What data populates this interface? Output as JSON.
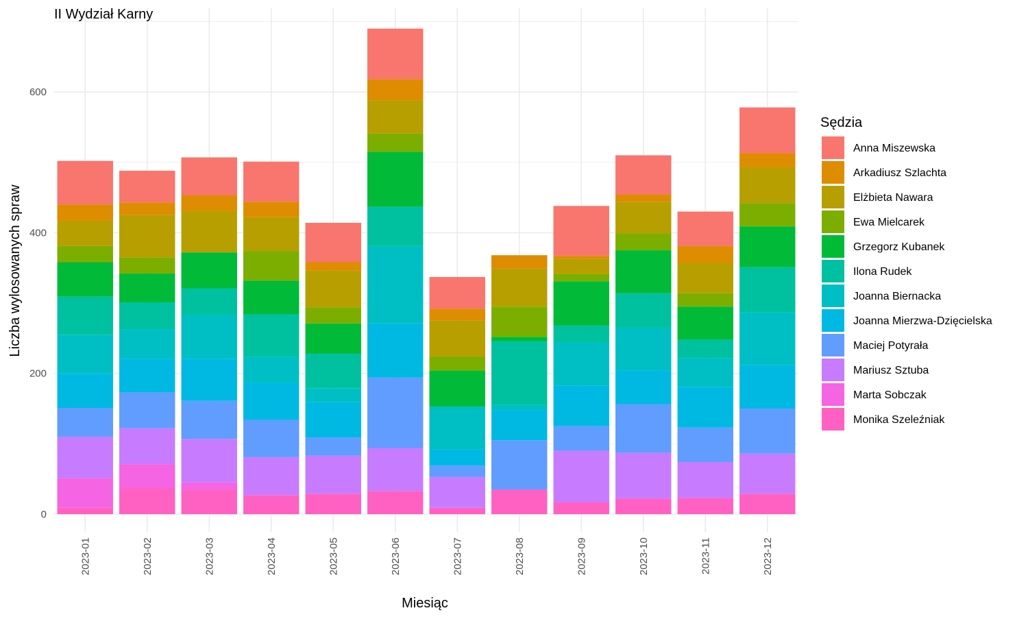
{
  "chart_data": {
    "type": "bar",
    "stacked": true,
    "title": "II Wydział Karny",
    "xlabel": "Miesiąc",
    "ylabel": "Liczba wylosowanych spraw",
    "ylim": [
      0,
      700
    ],
    "yticks": [
      0,
      200,
      400,
      600
    ],
    "grid": true,
    "legend_title": "Sędzia",
    "legend_position": "right",
    "categories": [
      "2023-01",
      "2023-02",
      "2023-03",
      "2023-04",
      "2023-05",
      "2023-06",
      "2023-07",
      "2023-08",
      "2023-09",
      "2023-10",
      "2023-11",
      "2023-12"
    ],
    "series": [
      {
        "name": "Monika Szeleźniak",
        "color": "#FF61C3",
        "values": [
          9,
          37,
          35,
          27,
          29,
          33,
          9,
          35,
          17,
          22,
          23,
          29
        ]
      },
      {
        "name": "Marta Sobczak",
        "color": "#F564E3",
        "values": [
          42,
          34,
          10,
          0,
          0,
          0,
          0,
          0,
          0,
          0,
          0,
          0
        ]
      },
      {
        "name": "Mariusz Sztuba",
        "color": "#C77CFF",
        "values": [
          59,
          51,
          62,
          54,
          54,
          61,
          44,
          0,
          73,
          65,
          51,
          57
        ]
      },
      {
        "name": "Maciej Potyrała",
        "color": "#619CFF",
        "values": [
          41,
          51,
          54,
          53,
          26,
          100,
          16,
          70,
          35,
          69,
          49,
          64
        ]
      },
      {
        "name": "Joanna Mierzwa-Dzięcielska",
        "color": "#00B9E3",
        "values": [
          49,
          48,
          60,
          53,
          50,
          77,
          23,
          43,
          58,
          48,
          58,
          62
        ]
      },
      {
        "name": "Joanna Biernacka",
        "color": "#00BFC4",
        "values": [
          55,
          42,
          62,
          37,
          20,
          110,
          61,
          7,
          61,
          61,
          41,
          75
        ]
      },
      {
        "name": "Ilona Rudek",
        "color": "#00C19F",
        "values": [
          54,
          38,
          38,
          60,
          49,
          56,
          0,
          91,
          24,
          49,
          26,
          64
        ]
      },
      {
        "name": "Grzegorz Kubanek",
        "color": "#00BA38",
        "values": [
          49,
          41,
          51,
          48,
          43,
          78,
          51,
          6,
          63,
          61,
          47,
          58
        ]
      },
      {
        "name": "Ewa Mielcarek",
        "color": "#7CAE00",
        "values": [
          23,
          23,
          0,
          42,
          23,
          26,
          20,
          43,
          10,
          24,
          19,
          33
        ]
      },
      {
        "name": "Elżbieta Nawara",
        "color": "#B79F00",
        "values": [
          36,
          60,
          59,
          48,
          52,
          47,
          51,
          54,
          22,
          45,
          43,
          51
        ]
      },
      {
        "name": "Arkadiusz Szlachta",
        "color": "#DE8C00",
        "values": [
          23,
          18,
          22,
          22,
          12,
          30,
          17,
          19,
          4,
          10,
          24,
          20
        ]
      },
      {
        "name": "Anna Miszewska",
        "color": "#F8766D",
        "values": [
          62,
          45,
          54,
          57,
          56,
          72,
          45,
          0,
          71,
          56,
          49,
          65
        ]
      }
    ]
  }
}
